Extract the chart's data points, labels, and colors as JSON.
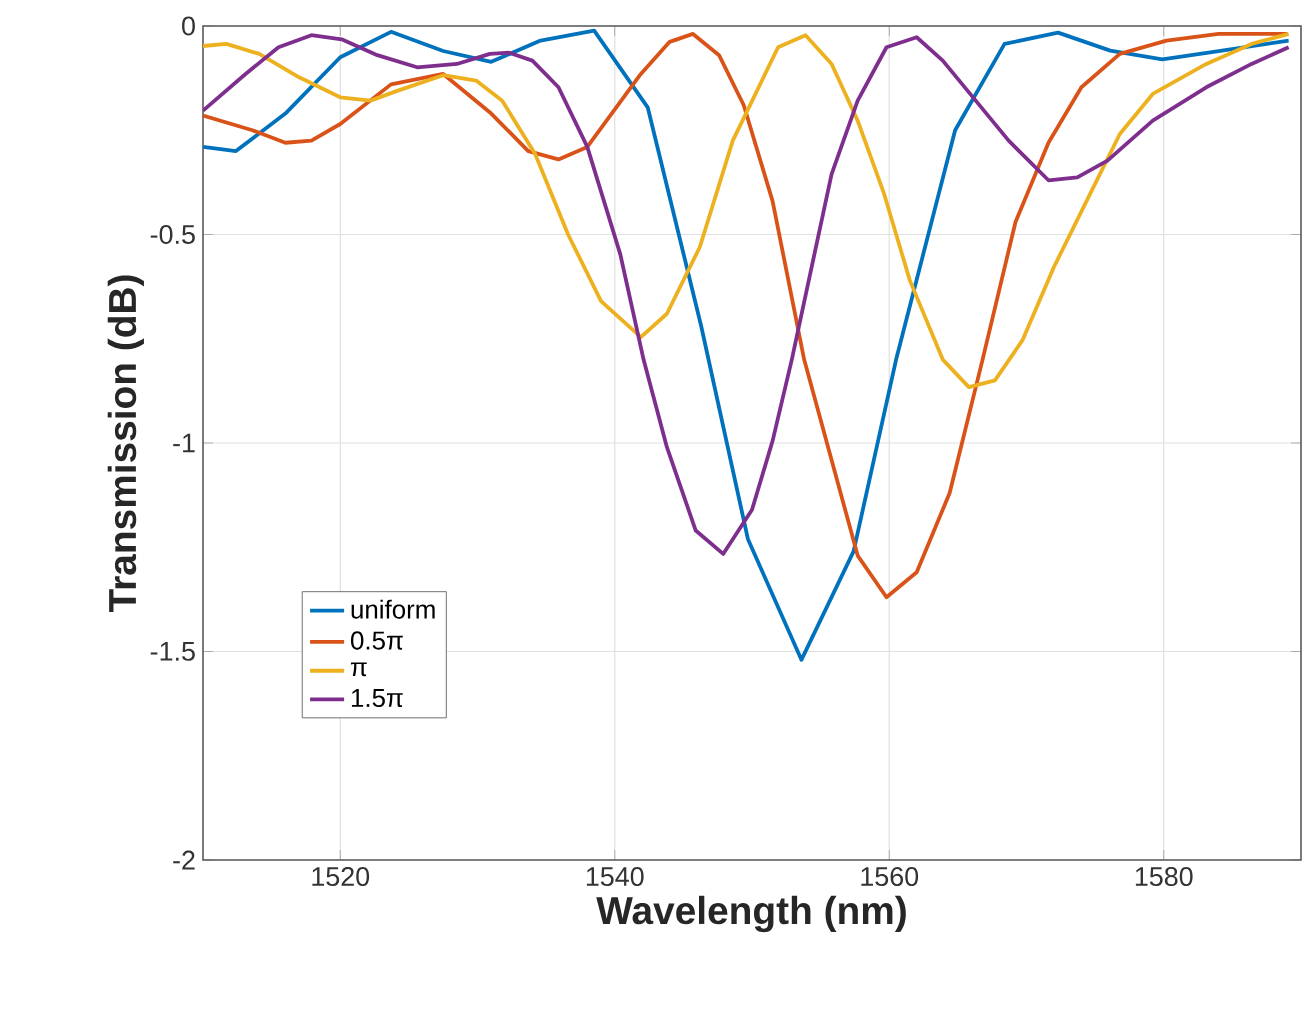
{
  "chart_data": {
    "type": "line",
    "xlabel": "Wavelength (nm)",
    "ylabel": "Transmission (dB)",
    "xlim": [
      1510,
      1590
    ],
    "ylim": [
      -2,
      0
    ],
    "xticks": [
      1520,
      1540,
      1560,
      1580
    ],
    "yticks": [
      -2,
      -1.5,
      -1,
      -0.5,
      0
    ],
    "grid": true,
    "legend": "left",
    "marker": "none",
    "line_style": "solid",
    "series": [
      {
        "name": "uniform",
        "color": "#0072bd",
        "x": [
          1510,
          1512.4,
          1516,
          1520,
          1523.7,
          1527.5,
          1531,
          1534.6,
          1538.5,
          1542.4,
          1546.3,
          1549.7,
          1553.6,
          1557.4,
          1560.5,
          1564.8,
          1568.4,
          1572.3,
          1576.1,
          1579.9,
          1584,
          1589.1
        ],
        "values": [
          -0.29,
          -0.3,
          -0.21,
          -0.075,
          -0.014,
          -0.06,
          -0.086,
          -0.035,
          -0.011,
          -0.195,
          -0.72,
          -1.23,
          -1.52,
          -1.26,
          -0.8,
          -0.25,
          -0.043,
          -0.016,
          -0.059,
          -0.08,
          -0.06,
          -0.035
        ]
      },
      {
        "name": "0.5π",
        "color": "#d95319",
        "x": [
          1510,
          1513.6,
          1516,
          1517.9,
          1520,
          1523.7,
          1527.5,
          1531,
          1533.7,
          1535.9,
          1538,
          1541.9,
          1544,
          1545.7,
          1547.6,
          1549.4,
          1551.5,
          1553.8,
          1557.7,
          1559.8,
          1562,
          1564.4,
          1566.8,
          1569.2,
          1571.6,
          1574,
          1576.8,
          1580.2,
          1584,
          1589
        ],
        "values": [
          -0.215,
          -0.25,
          -0.28,
          -0.275,
          -0.235,
          -0.14,
          -0.115,
          -0.21,
          -0.3,
          -0.32,
          -0.29,
          -0.115,
          -0.038,
          -0.019,
          -0.07,
          -0.19,
          -0.42,
          -0.8,
          -1.27,
          -1.37,
          -1.31,
          -1.12,
          -0.8,
          -0.47,
          -0.28,
          -0.147,
          -0.067,
          -0.035,
          -0.019,
          -0.019
        ]
      },
      {
        "name": "π",
        "color": "#edb120",
        "x": [
          1510,
          1511.7,
          1514.1,
          1517,
          1520,
          1522.2,
          1524.2,
          1527.5,
          1529.9,
          1531.8,
          1534.2,
          1536.6,
          1539,
          1541.9,
          1543.8,
          1546.2,
          1548.6,
          1551.9,
          1553.9,
          1555.8,
          1557.7,
          1559.6,
          1561.5,
          1563.9,
          1565.8,
          1567.7,
          1569.7,
          1572,
          1574.4,
          1576.8,
          1579.2,
          1583.1,
          1586.4,
          1589.1
        ],
        "values": [
          -0.048,
          -0.043,
          -0.067,
          -0.123,
          -0.171,
          -0.179,
          -0.155,
          -0.118,
          -0.131,
          -0.179,
          -0.307,
          -0.5,
          -0.66,
          -0.746,
          -0.69,
          -0.53,
          -0.275,
          -0.051,
          -0.022,
          -0.091,
          -0.227,
          -0.4,
          -0.61,
          -0.8,
          -0.866,
          -0.85,
          -0.754,
          -0.578,
          -0.418,
          -0.259,
          -0.163,
          -0.091,
          -0.043,
          -0.019
        ]
      },
      {
        "name": "1.5π",
        "color": "#7e2f8e",
        "x": [
          1510,
          1513.1,
          1515.5,
          1517.9,
          1520.1,
          1522.7,
          1525.6,
          1528.5,
          1530.9,
          1532.3,
          1534,
          1535.9,
          1538,
          1540.4,
          1542.1,
          1543.8,
          1545.9,
          1547.9,
          1550,
          1551.5,
          1552.9,
          1555.8,
          1557.7,
          1559.8,
          1562,
          1563.9,
          1566.3,
          1568.7,
          1571.6,
          1573.7,
          1575.9,
          1579.2,
          1583.1,
          1586.4,
          1589.1
        ],
        "values": [
          -0.203,
          -0.115,
          -0.051,
          -0.022,
          -0.032,
          -0.07,
          -0.099,
          -0.091,
          -0.067,
          -0.064,
          -0.083,
          -0.147,
          -0.29,
          -0.547,
          -0.8,
          -1.01,
          -1.21,
          -1.266,
          -1.16,
          -0.995,
          -0.8,
          -0.355,
          -0.179,
          -0.051,
          -0.027,
          -0.083,
          -0.179,
          -0.275,
          -0.37,
          -0.363,
          -0.323,
          -0.227,
          -0.147,
          -0.091,
          -0.051
        ]
      }
    ]
  }
}
